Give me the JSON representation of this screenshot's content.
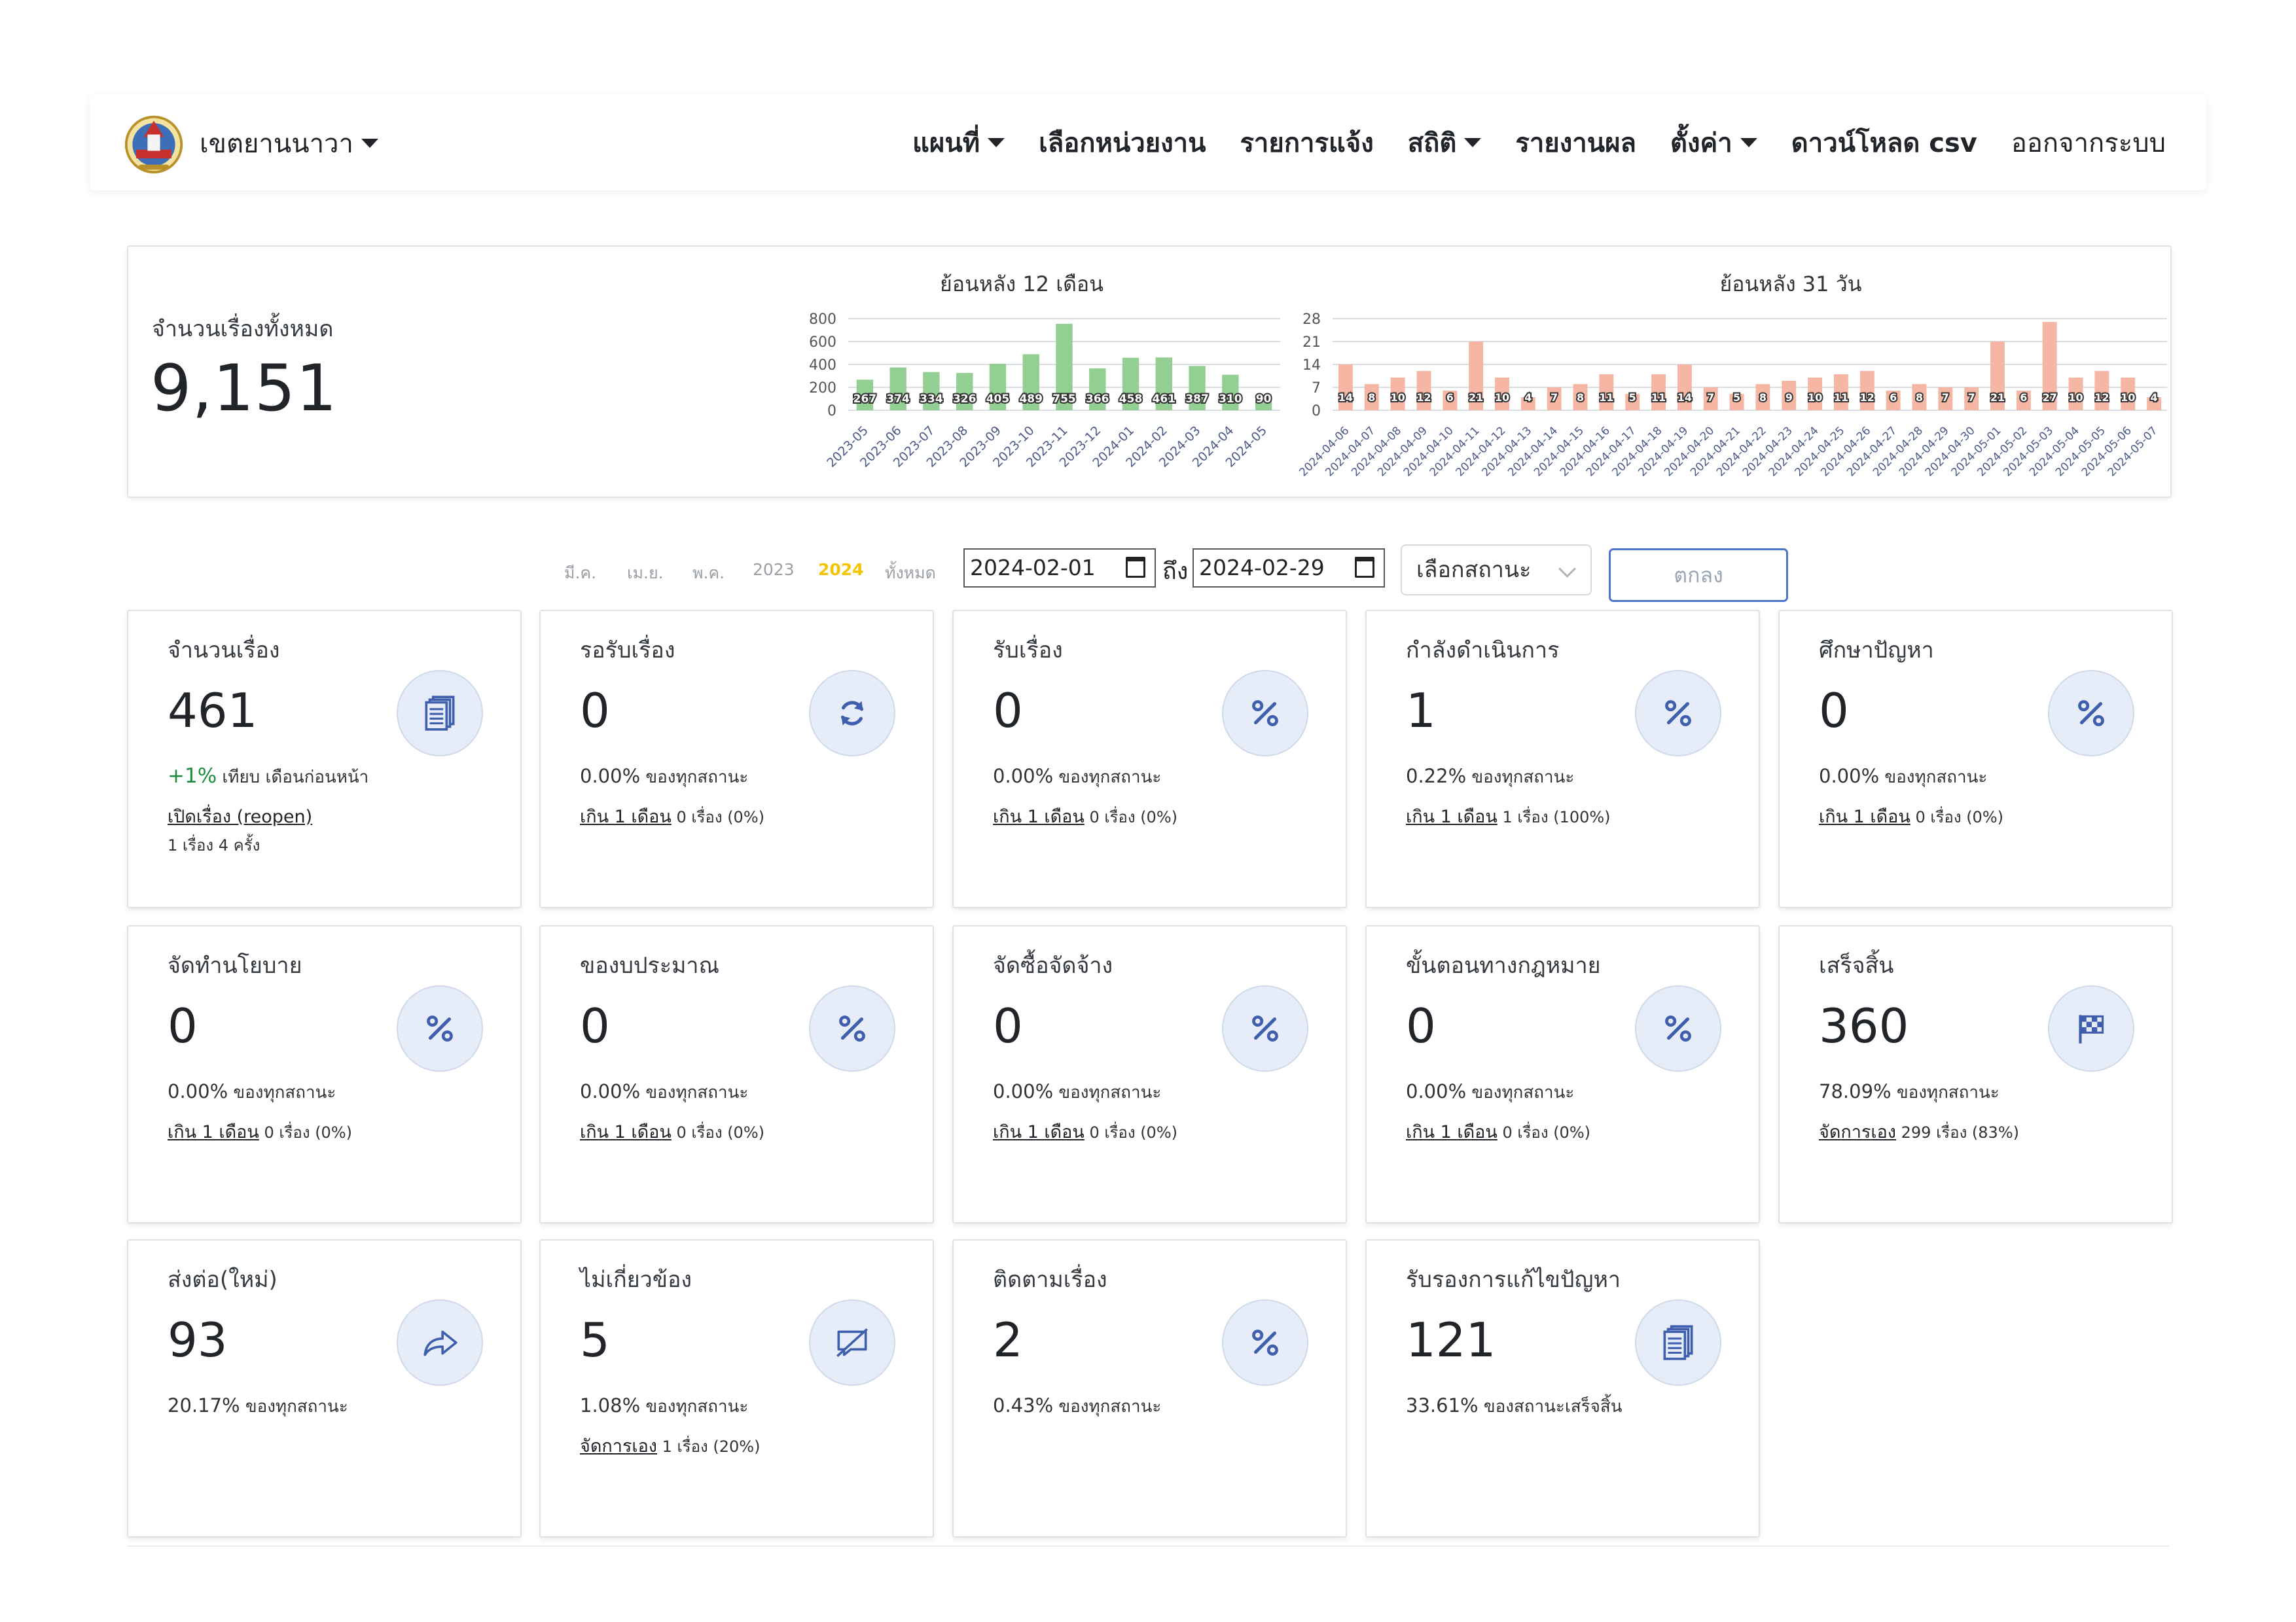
{
  "navbar": {
    "brand": "เขตยานนาวา",
    "items": [
      {
        "label": "แผนที่",
        "dropdown": true
      },
      {
        "label": "เลือกหน่วยงาน",
        "dropdown": false
      },
      {
        "label": "รายการแจ้ง",
        "dropdown": false
      },
      {
        "label": "สถิติ",
        "dropdown": true
      },
      {
        "label": "รายงานผล",
        "dropdown": false
      },
      {
        "label": "ตั้งค่า",
        "dropdown": true
      },
      {
        "label": "ดาวน์โหลด csv",
        "dropdown": false
      }
    ],
    "logout": "ออกจากระบบ"
  },
  "summary": {
    "label": "จำนวนเรื่องทั้งหมด",
    "value": "9,151"
  },
  "chart_data": [
    {
      "type": "bar",
      "title": "ย้อนหลัง 12 เดือน",
      "categories": [
        "2023-05",
        "2023-06",
        "2023-07",
        "2023-08",
        "2023-09",
        "2023-10",
        "2023-11",
        "2023-12",
        "2024-01",
        "2024-02",
        "2024-03",
        "2024-04",
        "2024-05"
      ],
      "values": [
        267,
        374,
        334,
        326,
        405,
        489,
        755,
        366,
        458,
        461,
        387,
        310,
        90
      ],
      "yticks": [
        0,
        200,
        400,
        600,
        800
      ],
      "ylim": [
        0,
        800
      ],
      "color": "#93cf93",
      "grid": true
    },
    {
      "type": "bar",
      "title": "ย้อนหลัง 31 วัน",
      "categories": [
        "2024-04-06",
        "2024-04-07",
        "2024-04-08",
        "2024-04-09",
        "2024-04-10",
        "2024-04-11",
        "2024-04-12",
        "2024-04-13",
        "2024-04-14",
        "2024-04-15",
        "2024-04-16",
        "2024-04-17",
        "2024-04-18",
        "2024-04-19",
        "2024-04-20",
        "2024-04-21",
        "2024-04-22",
        "2024-04-23",
        "2024-04-24",
        "2024-04-25",
        "2024-04-26",
        "2024-04-27",
        "2024-04-28",
        "2024-04-29",
        "2024-04-30",
        "2024-05-01",
        "2024-05-02",
        "2024-05-03",
        "2024-05-04",
        "2024-05-05",
        "2024-05-06",
        "2024-05-07"
      ],
      "values": [
        14,
        8,
        10,
        12,
        6,
        21,
        10,
        4,
        7,
        8,
        11,
        5,
        11,
        14,
        7,
        5,
        8,
        9,
        10,
        11,
        12,
        6,
        8,
        7,
        7,
        21,
        6,
        27,
        10,
        12,
        10,
        4
      ],
      "yticks": [
        0,
        7,
        14,
        21,
        28
      ],
      "ylim": [
        0,
        28
      ],
      "color": "#f5b7a4",
      "grid": true
    }
  ],
  "filters": {
    "links": [
      "มี.ค.",
      "เม.ย.",
      "พ.ค.",
      "2023",
      "2024",
      "ทั้งหมด"
    ],
    "active": "2024",
    "date_from": "2024-02-01",
    "to_label": "ถึง",
    "date_to": "2024-02-29",
    "status_placeholder": "เลือกสถานะ",
    "submit": "ตกลง"
  },
  "cards": [
    {
      "title": "จำนวนเรื่อง",
      "value": "461",
      "icon": "documents-icon",
      "line1_pct": "+1%",
      "line1_text": " เทียบ เดือนก่อนหน้า",
      "line1_green": true,
      "line2_link": "เปิดเรื่อง (reopen)",
      "line2_text": "",
      "line3": "1 เรื่อง 4 ครั้ง"
    },
    {
      "title": "รอรับเรื่อง",
      "value": "0",
      "icon": "refresh-icon",
      "line1_pct": "0.00%",
      "line1_text": " ของทุกสถานะ",
      "line2_link": "เกิน 1 เดือน",
      "line2_text": " 0 เรื่อง (0%)"
    },
    {
      "title": "รับเรื่อง",
      "value": "0",
      "icon": "percent-icon",
      "line1_pct": "0.00%",
      "line1_text": " ของทุกสถานะ",
      "line2_link": "เกิน 1 เดือน",
      "line2_text": " 0 เรื่อง (0%)"
    },
    {
      "title": "กำลังดำเนินการ",
      "value": "1",
      "icon": "percent-icon",
      "line1_pct": "0.22%",
      "line1_text": " ของทุกสถานะ",
      "line2_link": "เกิน 1 เดือน",
      "line2_text": " 1 เรื่อง (100%)"
    },
    {
      "title": "ศึกษาปัญหา",
      "value": "0",
      "icon": "percent-icon",
      "line1_pct": "0.00%",
      "line1_text": " ของทุกสถานะ",
      "line2_link": "เกิน 1 เดือน",
      "line2_text": " 0 เรื่อง (0%)"
    },
    {
      "title": "จัดทำนโยบาย",
      "value": "0",
      "icon": "percent-icon",
      "line1_pct": "0.00%",
      "line1_text": " ของทุกสถานะ",
      "line2_link": "เกิน 1 เดือน",
      "line2_text": " 0 เรื่อง (0%)"
    },
    {
      "title": "ของบประมาณ",
      "value": "0",
      "icon": "percent-icon",
      "line1_pct": "0.00%",
      "line1_text": " ของทุกสถานะ",
      "line2_link": "เกิน 1 เดือน",
      "line2_text": " 0 เรื่อง (0%)"
    },
    {
      "title": "จัดซื้อจัดจ้าง",
      "value": "0",
      "icon": "percent-icon",
      "line1_pct": "0.00%",
      "line1_text": " ของทุกสถานะ",
      "line2_link": "เกิน 1 เดือน",
      "line2_text": " 0 เรื่อง (0%)"
    },
    {
      "title": "ขั้นตอนทางกฎหมาย",
      "value": "0",
      "icon": "percent-icon",
      "line1_pct": "0.00%",
      "line1_text": " ของทุกสถานะ",
      "line2_link": "เกิน 1 เดือน",
      "line2_text": " 0 เรื่อง (0%)"
    },
    {
      "title": "เสร็จสิ้น",
      "value": "360",
      "icon": "checkered-flag-icon",
      "line1_pct": "78.09%",
      "line1_text": " ของทุกสถานะ",
      "line2_link": "จัดการเอง",
      "line2_text": " 299 เรื่อง (83%)"
    },
    {
      "title": "ส่งต่อ(ใหม่)",
      "value": "93",
      "icon": "share-arrow-icon",
      "line1_pct": "20.17%",
      "line1_text": " ของทุกสถานะ"
    },
    {
      "title": "ไม่เกี่ยวข้อง",
      "value": "5",
      "icon": "comment-slash-icon",
      "line1_pct": "1.08%",
      "line1_text": " ของทุกสถานะ",
      "line2_link": "จัดการเอง",
      "line2_text": " 1 เรื่อง (20%)"
    },
    {
      "title": "ติดตามเรื่อง",
      "value": "2",
      "icon": "percent-icon",
      "line1_pct": "0.43%",
      "line1_text": " ของทุกสถานะ"
    },
    {
      "title": "รับรองการแก้ไขปัญหา",
      "value": "121",
      "icon": "documents-icon",
      "line1_pct": "33.61%",
      "line1_text": " ของสถานะเสร็จสิ้น"
    }
  ]
}
